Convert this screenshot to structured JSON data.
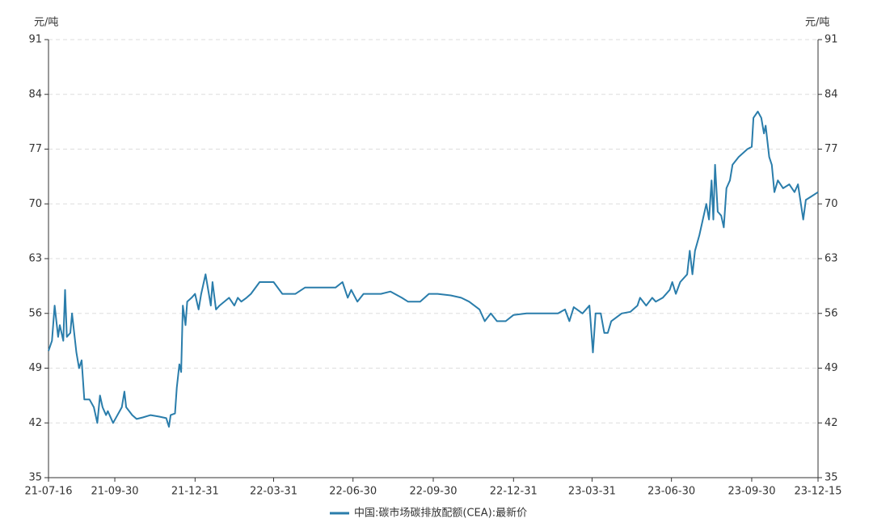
{
  "chart_data": {
    "type": "line",
    "y_unit": "元/吨",
    "x": [
      "21-07-16",
      "21-07-20",
      "21-07-23",
      "21-07-27",
      "21-07-29",
      "21-08-02",
      "21-08-04",
      "21-08-06",
      "21-08-10",
      "21-08-12",
      "21-08-17",
      "21-08-20",
      "21-08-23",
      "21-08-26",
      "21-09-01",
      "21-09-06",
      "21-09-10",
      "21-09-13",
      "21-09-16",
      "21-09-20",
      "21-09-22",
      "21-09-28",
      "21-10-08",
      "21-10-11",
      "21-10-13",
      "21-10-20",
      "21-10-25",
      "21-11-01",
      "21-11-10",
      "21-11-20",
      "21-11-28",
      "21-12-01",
      "21-12-03",
      "21-12-08",
      "21-12-10",
      "21-12-13",
      "21-12-15",
      "21-12-17",
      "21-12-20",
      "21-12-22",
      "21-12-27",
      "21-12-31",
      "22-01-04",
      "22-01-07",
      "22-01-12",
      "22-01-18",
      "22-01-20",
      "22-01-24",
      "22-01-28",
      "22-02-08",
      "22-02-14",
      "22-02-18",
      "22-02-22",
      "22-02-28",
      "22-03-05",
      "22-03-15",
      "22-03-31",
      "22-04-10",
      "22-04-25",
      "22-05-06",
      "22-05-20",
      "22-06-01",
      "22-06-10",
      "22-06-18",
      "22-06-24",
      "22-06-28",
      "22-07-05",
      "22-07-12",
      "22-07-18",
      "22-08-01",
      "22-08-12",
      "22-08-25",
      "22-09-01",
      "22-09-15",
      "22-09-25",
      "22-10-05",
      "22-10-20",
      "22-11-01",
      "22-11-10",
      "22-11-22",
      "22-11-28",
      "22-12-05",
      "22-12-12",
      "22-12-22",
      "22-12-31",
      "23-01-15",
      "23-02-01",
      "23-02-20",
      "23-02-28",
      "23-03-05",
      "23-03-10",
      "23-03-20",
      "23-03-28",
      "23-04-01",
      "23-04-04",
      "23-04-10",
      "23-04-14",
      "23-04-18",
      "23-04-22",
      "23-05-04",
      "23-05-14",
      "23-05-22",
      "23-05-25",
      "23-06-01",
      "23-06-08",
      "23-06-12",
      "23-06-20",
      "23-06-28",
      "23-07-01",
      "23-07-05",
      "23-07-10",
      "23-07-18",
      "23-07-21",
      "23-07-24",
      "23-07-27",
      "23-08-01",
      "23-08-05",
      "23-08-09",
      "23-08-12",
      "23-08-15",
      "23-08-17",
      "23-08-19",
      "23-08-22",
      "23-08-26",
      "23-08-29",
      "23-09-01",
      "23-09-05",
      "23-09-08",
      "23-09-15",
      "23-09-25",
      "23-09-30",
      "23-10-02",
      "23-10-07",
      "23-10-11",
      "23-10-14",
      "23-10-16",
      "23-10-20",
      "23-10-23",
      "23-10-26",
      "23-10-30",
      "23-11-05",
      "23-11-12",
      "23-11-18",
      "23-11-22",
      "23-11-28",
      "23-12-01",
      "23-12-08",
      "23-12-15"
    ],
    "series": [
      {
        "name": "中国:碳市场碳排放配额(CEA):最新价",
        "color": "#2a7dab",
        "values": [
          51.2,
          52.5,
          57,
          53,
          54.5,
          52.5,
          59,
          53,
          53.5,
          56,
          51,
          49,
          50,
          45,
          45,
          44,
          42,
          45.5,
          44,
          43,
          43.5,
          42,
          44,
          46,
          44,
          43,
          42.5,
          42.7,
          43,
          42.8,
          42.6,
          41.5,
          43,
          43.2,
          46.5,
          49.5,
          48.5,
          57,
          54.5,
          57.5,
          58,
          58.5,
          56.5,
          58.5,
          61,
          57,
          60,
          56.5,
          57,
          58,
          57,
          58,
          57.5,
          58,
          58.5,
          60,
          60,
          58.5,
          58.5,
          59.3,
          59.3,
          59.3,
          59.3,
          60,
          58,
          59,
          57.5,
          58.5,
          58.5,
          58.5,
          58.8,
          58,
          57.5,
          57.5,
          58.5,
          58.5,
          58.3,
          58,
          57.5,
          56.5,
          55,
          56,
          55,
          55,
          55.8,
          56,
          56,
          56,
          56.5,
          55,
          56.8,
          56,
          57,
          51,
          56,
          56,
          53.5,
          53.5,
          55,
          56,
          56.2,
          57,
          58,
          57,
          58,
          57.5,
          58,
          59,
          60,
          58.5,
          60,
          61,
          64,
          61,
          64,
          66,
          68,
          70,
          68,
          73,
          68,
          75,
          69,
          68.5,
          67,
          72,
          73,
          75,
          76,
          77,
          77.3,
          81,
          81.8,
          81,
          79,
          80,
          76,
          75,
          71.5,
          73,
          72,
          72.5,
          71.5,
          72.5,
          68,
          70.5,
          71,
          71.5
        ]
      }
    ],
    "xlim": [
      "21-07-16",
      "23-12-15"
    ],
    "xticks": [
      "21-07-16",
      "21-09-30",
      "21-12-31",
      "22-03-31",
      "22-06-30",
      "22-09-30",
      "22-12-31",
      "23-03-31",
      "23-06-30",
      "23-09-30",
      "23-12-15"
    ],
    "ylim": [
      35,
      91
    ],
    "yticks": [
      35,
      42,
      49,
      56,
      63,
      70,
      77,
      84,
      91
    ],
    "grid": true
  }
}
